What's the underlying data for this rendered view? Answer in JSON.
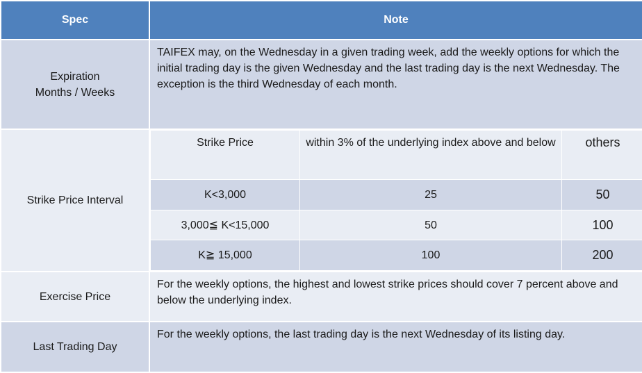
{
  "header": {
    "spec": "Spec",
    "note": "Note"
  },
  "rows": {
    "expiration": {
      "label_line1": "Expiration",
      "label_line2": "Months / Weeks",
      "note": "TAIFEX may, on the Wednesday in a given trading week, add the weekly options for which the initial trading day is the given Wednesday and the last trading day is the next Wednesday. The exception is the third Wednesday of each month."
    },
    "strike_interval": {
      "label": "Strike Price Interval",
      "columns": [
        "Strike Price",
        "within 3% of the underlying index above and below",
        "others"
      ],
      "rows": [
        [
          "K<3,000",
          "25",
          "50"
        ],
        [
          "3,000≦ K<15,000",
          "50",
          "100"
        ],
        [
          "K≧ 15,000",
          "100",
          "200"
        ]
      ]
    },
    "exercise": {
      "label": "Exercise Price",
      "note": "For the weekly options, the highest and lowest strike prices should cover 7 percent above and below the underlying index."
    },
    "last_trading": {
      "label": "Last Trading Day",
      "note": "For the weekly options, the last trading day is the next Wednesday of its listing day."
    }
  }
}
